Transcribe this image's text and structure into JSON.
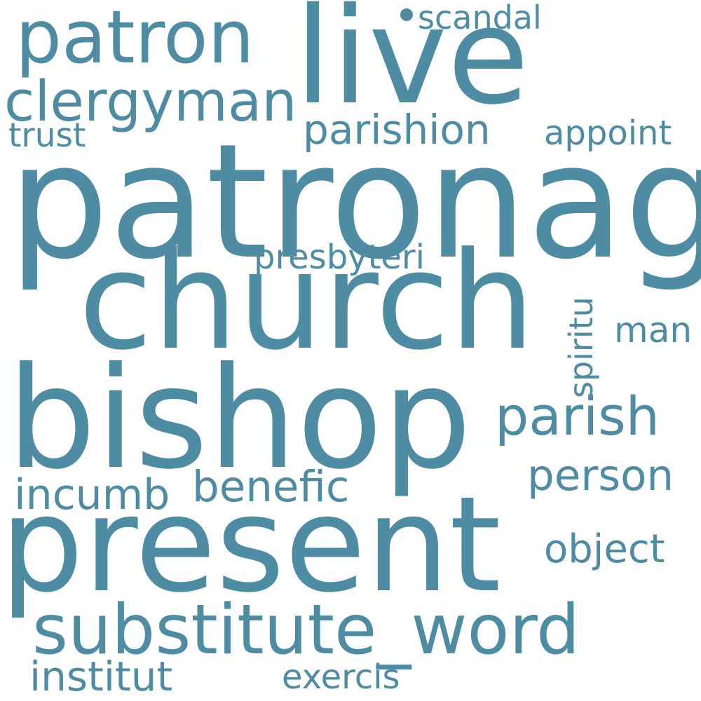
{
  "wordcloud": {
    "text_color": "#4e8ca3",
    "background": "#ffffff",
    "words": {
      "patronag": "patronag",
      "church": "church",
      "bishop": "bishop",
      "present": "present",
      "live": "live",
      "patron": "patron",
      "clergyman": "clergyman",
      "substitute_word": "substitute_word",
      "parish": "parish",
      "parishion": "parishion",
      "appoint": "appoint",
      "trust": "trust",
      "scandal": "scandal",
      "presbyteri": "presbyteri",
      "spiritu": "spiritu",
      "man": "man",
      "person": "person",
      "object": "object",
      "benefic": "benefic",
      "incumb": "incumb",
      "institut": "institut",
      "exercis": "exercis"
    }
  }
}
